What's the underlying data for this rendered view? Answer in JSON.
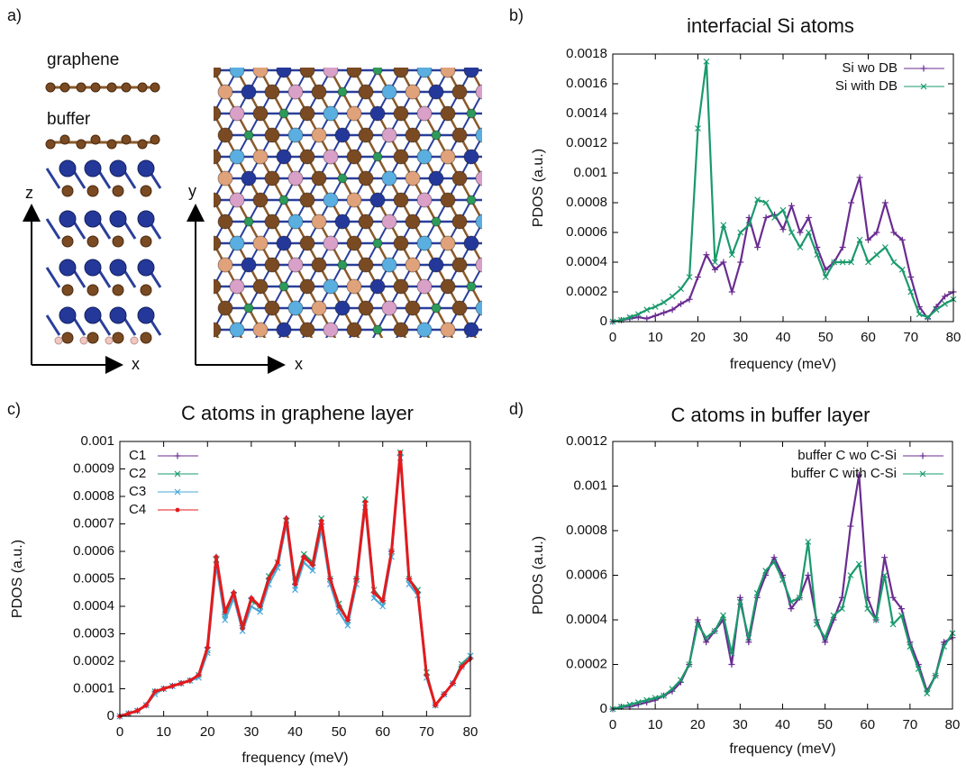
{
  "panel_a": {
    "label": "a)",
    "layers": [
      "graphene",
      "buffer"
    ],
    "side_axes": [
      "z",
      "x"
    ],
    "top_axes": [
      "y",
      "x"
    ]
  },
  "chart_data": [
    {
      "type": "line",
      "panel_label": "b)",
      "title": "interfacial Si atoms",
      "xlabel": "frequency (meV)",
      "ylabel": "PDOS (a.u.)",
      "xlim": [
        0,
        80
      ],
      "xticks": [
        0,
        10,
        20,
        30,
        40,
        50,
        60,
        70,
        80
      ],
      "ylim": [
        0,
        0.0018
      ],
      "yticks": [
        0,
        0.0002,
        0.0004,
        0.0006,
        0.0008,
        0.001,
        0.0012,
        0.0014,
        0.0016,
        0.0018
      ],
      "legend": "upper right",
      "x": [
        0,
        2,
        4,
        6,
        8,
        10,
        12,
        14,
        16,
        18,
        20,
        22,
        24,
        26,
        28,
        30,
        32,
        34,
        36,
        38,
        40,
        42,
        44,
        46,
        48,
        50,
        52,
        54,
        56,
        58,
        60,
        62,
        64,
        66,
        68,
        70,
        72,
        74,
        76,
        78,
        80
      ],
      "series": [
        {
          "name": "Si wo DB",
          "color": "#6a2c91",
          "marker": "+",
          "values": [
            0,
            1e-05,
            2e-05,
            3e-05,
            2e-05,
            4e-05,
            6e-05,
            8e-05,
            0.00012,
            0.00015,
            0.0003,
            0.00045,
            0.00035,
            0.0004,
            0.0002,
            0.0004,
            0.0007,
            0.0005,
            0.0007,
            0.00072,
            0.00062,
            0.00078,
            0.0006,
            0.0007,
            0.0005,
            0.00035,
            0.0004,
            0.0005,
            0.0008,
            0.00097,
            0.00055,
            0.0006,
            0.0008,
            0.0006,
            0.00055,
            0.0003,
            0.0001,
            2e-05,
            0.0001,
            0.00017,
            0.0002
          ]
        },
        {
          "name": "Si with DB",
          "color": "#1a9a6c",
          "marker": "x",
          "values": [
            0,
            1e-05,
            3e-05,
            5e-05,
            8e-05,
            0.0001,
            0.00013,
            0.00017,
            0.00022,
            0.0003,
            0.0013,
            0.00175,
            0.0004,
            0.00065,
            0.00045,
            0.0006,
            0.00065,
            0.00082,
            0.0008,
            0.0007,
            0.00075,
            0.0006,
            0.0005,
            0.0006,
            0.00045,
            0.0003,
            0.0004,
            0.0004,
            0.0004,
            0.00055,
            0.0004,
            0.00045,
            0.0005,
            0.0004,
            0.00035,
            0.0002,
            5e-05,
            3e-05,
            8e-05,
            0.00012,
            0.00015
          ]
        }
      ]
    },
    {
      "type": "line",
      "panel_label": "c)",
      "title": "C atoms in graphene layer",
      "xlabel": "frequency (meV)",
      "ylabel": "PDOS (a.u.)",
      "xlim": [
        0,
        80
      ],
      "xticks": [
        0,
        10,
        20,
        30,
        40,
        50,
        60,
        70,
        80
      ],
      "ylim": [
        0,
        0.001
      ],
      "yticks": [
        0,
        0.0001,
        0.0002,
        0.0003,
        0.0004,
        0.0005,
        0.0006,
        0.0007,
        0.0008,
        0.0009,
        0.001
      ],
      "legend": "upper left",
      "x": [
        0,
        2,
        4,
        6,
        8,
        10,
        12,
        14,
        16,
        18,
        20,
        22,
        24,
        26,
        28,
        30,
        32,
        34,
        36,
        38,
        40,
        42,
        44,
        46,
        48,
        50,
        52,
        54,
        56,
        58,
        60,
        62,
        64,
        66,
        68,
        70,
        72,
        74,
        76,
        78,
        80
      ],
      "series": [
        {
          "name": "C1",
          "color": "#6a2c91",
          "marker": "+",
          "values": [
            0,
            1e-05,
            2e-05,
            4e-05,
            9e-05,
            0.0001,
            0.00011,
            0.00012,
            0.00013,
            0.00015,
            0.00025,
            0.00058,
            0.00037,
            0.00045,
            0.00033,
            0.00043,
            0.0004,
            0.0005,
            0.00055,
            0.00072,
            0.00048,
            0.00058,
            0.00055,
            0.0007,
            0.0005,
            0.0004,
            0.00035,
            0.0005,
            0.00078,
            0.00045,
            0.00042,
            0.0006,
            0.00095,
            0.0005,
            0.00045,
            0.00015,
            4e-05,
            8e-05,
            0.00012,
            0.00018,
            0.00021
          ]
        },
        {
          "name": "C2",
          "color": "#1a9a6c",
          "marker": "x",
          "values": [
            0,
            1e-05,
            2e-05,
            4e-05,
            9e-05,
            0.0001,
            0.00011,
            0.00012,
            0.00013,
            0.00015,
            0.00024,
            0.00057,
            0.00037,
            0.00044,
            0.00033,
            0.00042,
            0.0004,
            0.00051,
            0.00056,
            0.00071,
            0.00049,
            0.00059,
            0.00056,
            0.00072,
            0.0005,
            0.00041,
            0.00035,
            0.0005,
            0.00079,
            0.00046,
            0.00042,
            0.0006,
            0.00096,
            0.0005,
            0.00046,
            0.00016,
            4e-05,
            8e-05,
            0.00012,
            0.00019,
            0.00022
          ]
        },
        {
          "name": "C3",
          "color": "#4aa8d8",
          "marker": "x",
          "values": [
            0,
            1e-05,
            2e-05,
            4e-05,
            8e-05,
            0.0001,
            0.00011,
            0.00012,
            0.00013,
            0.00014,
            0.00023,
            0.00055,
            0.00035,
            0.00043,
            0.00031,
            0.0004,
            0.00038,
            0.00048,
            0.00054,
            0.0007,
            0.00046,
            0.00056,
            0.00053,
            0.00068,
            0.00048,
            0.00038,
            0.00033,
            0.00048,
            0.00076,
            0.00043,
            0.0004,
            0.00058,
            0.00094,
            0.00048,
            0.00044,
            0.00014,
            4e-05,
            8e-05,
            0.00012,
            0.00018,
            0.00022
          ]
        },
        {
          "name": "C4",
          "color": "#e41a1c",
          "marker": "dot",
          "values": [
            0,
            1e-05,
            2e-05,
            4e-05,
            9e-05,
            0.0001,
            0.00011,
            0.00012,
            0.00013,
            0.00015,
            0.00025,
            0.00058,
            0.00038,
            0.00045,
            0.00032,
            0.00043,
            0.0004,
            0.0005,
            0.00056,
            0.00072,
            0.00048,
            0.00058,
            0.00055,
            0.00071,
            0.0005,
            0.0004,
            0.00035,
            0.0005,
            0.00078,
            0.00045,
            0.00042,
            0.0006,
            0.00096,
            0.0005,
            0.00045,
            0.00015,
            4e-05,
            8e-05,
            0.00012,
            0.00018,
            0.00021
          ]
        }
      ]
    },
    {
      "type": "line",
      "panel_label": "d)",
      "title": "C atoms in buffer layer",
      "xlabel": "frequency (meV)",
      "ylabel": "PDOS (a.u.)",
      "xlim": [
        0,
        80
      ],
      "xticks": [
        0,
        10,
        20,
        30,
        40,
        50,
        60,
        70,
        80
      ],
      "ylim": [
        0,
        0.0012
      ],
      "yticks": [
        0,
        0.0002,
        0.0004,
        0.0006,
        0.0008,
        0.001,
        0.0012
      ],
      "legend": "upper right",
      "x": [
        0,
        2,
        4,
        6,
        8,
        10,
        12,
        14,
        16,
        18,
        20,
        22,
        24,
        26,
        28,
        30,
        32,
        34,
        36,
        38,
        40,
        42,
        44,
        46,
        48,
        50,
        52,
        54,
        56,
        58,
        60,
        62,
        64,
        66,
        68,
        70,
        72,
        74,
        76,
        78,
        80
      ],
      "series": [
        {
          "name": "buffer C wo C-Si",
          "color": "#6a2c91",
          "marker": "+",
          "values": [
            0,
            1e-05,
            1e-05,
            2e-05,
            3e-05,
            4e-05,
            6e-05,
            8e-05,
            0.00012,
            0.0002,
            0.0004,
            0.0003,
            0.00035,
            0.0004,
            0.0002,
            0.0005,
            0.0003,
            0.0005,
            0.0006,
            0.00068,
            0.0006,
            0.00045,
            0.0005,
            0.0006,
            0.0004,
            0.0003,
            0.0004,
            0.0005,
            0.00082,
            0.00105,
            0.0005,
            0.0004,
            0.00068,
            0.0005,
            0.00045,
            0.0003,
            0.0002,
            8e-05,
            0.00015,
            0.0003,
            0.00032
          ]
        },
        {
          "name": "buffer C with C-Si",
          "color": "#1a9a6c",
          "marker": "x",
          "values": [
            0,
            1e-05,
            2e-05,
            3e-05,
            4e-05,
            5e-05,
            6e-05,
            9e-05,
            0.00013,
            0.0002,
            0.00038,
            0.00032,
            0.00035,
            0.00042,
            0.00025,
            0.00048,
            0.00032,
            0.00052,
            0.00062,
            0.00066,
            0.00058,
            0.00048,
            0.0005,
            0.00075,
            0.00038,
            0.00032,
            0.00042,
            0.00045,
            0.0006,
            0.00065,
            0.00045,
            0.0004,
            0.0006,
            0.00038,
            0.00042,
            0.00028,
            0.00018,
            7e-05,
            0.00015,
            0.00028,
            0.00034
          ]
        }
      ]
    }
  ]
}
